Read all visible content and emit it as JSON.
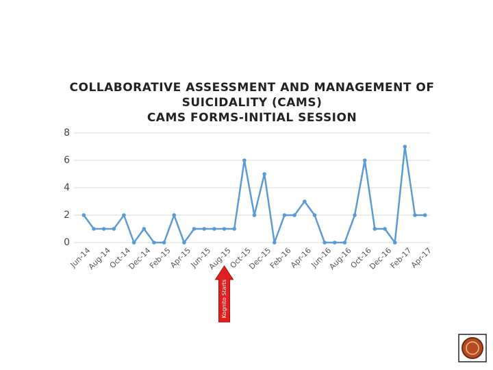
{
  "chart_data": {
    "type": "line",
    "title": [
      "COLLABORATIVE ASSESSMENT AND MANAGEMENT OF",
      "SUICIDALITY (CAMS)",
      "CAMS FORMS-INITIAL SESSION"
    ],
    "categories": [
      "Jun-14",
      null,
      "Aug-14",
      null,
      "Oct-14",
      null,
      "Dec-14",
      null,
      "Feb-15",
      null,
      "Apr-15",
      null,
      "Jun-15",
      null,
      "Aug-15",
      null,
      "Oct-15",
      null,
      "Dec-15",
      null,
      "Feb-16",
      null,
      "Apr-16",
      null,
      "Jun-16",
      null,
      "Aug-16",
      null,
      "Oct-16",
      null,
      "Dec-16",
      null,
      "Feb-17",
      null,
      "Apr-17"
    ],
    "series": [
      {
        "color": "#5b9bd5",
        "values": [
          2,
          1,
          1,
          1,
          2,
          0,
          1,
          0,
          0,
          2,
          0,
          1,
          1,
          1,
          1,
          1,
          6,
          2,
          5,
          0,
          2,
          2,
          3,
          2,
          0,
          0,
          0,
          2,
          6,
          1,
          1,
          0,
          7,
          2,
          2
        ]
      }
    ],
    "ylim": [
      0,
      8
    ],
    "yticks": [
      0,
      2,
      4,
      6,
      8
    ],
    "grid": true,
    "annotation": {
      "text": "Kognito Starts",
      "category_index": 14
    }
  }
}
